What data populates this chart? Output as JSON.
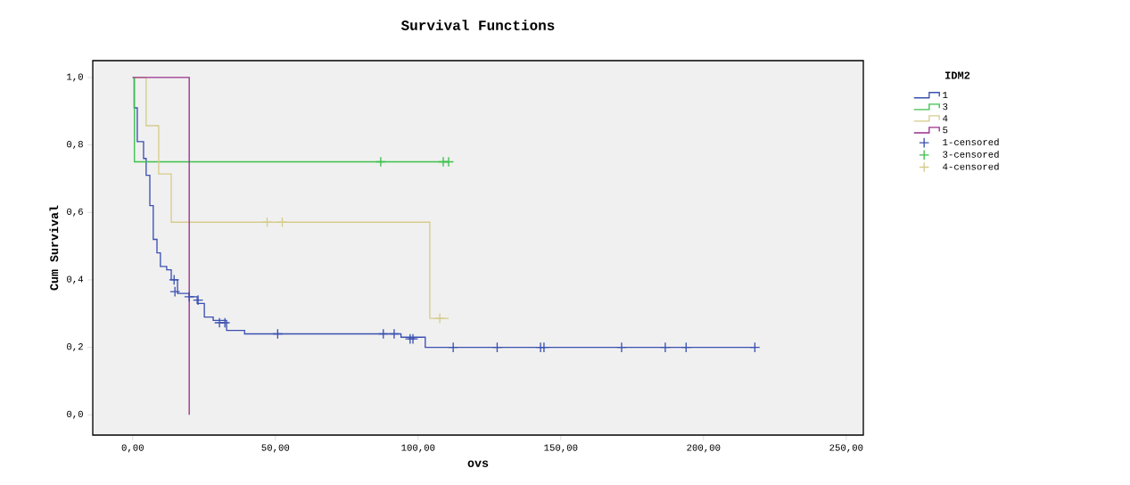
{
  "chart_data": {
    "type": "step",
    "title": "Survival Functions",
    "xlabel": "ovs",
    "ylabel": "Cum Survival",
    "legend_title": "IDM2",
    "legend": "right",
    "grid": false,
    "xlim": [
      -14,
      256
    ],
    "ylim": [
      -0.06,
      1.05
    ],
    "xticks": [
      {
        "value": 0,
        "label": "0,00"
      },
      {
        "value": 50,
        "label": "50,00"
      },
      {
        "value": 100,
        "label": "100,00"
      },
      {
        "value": 150,
        "label": "150,00"
      },
      {
        "value": 200,
        "label": "200,00"
      },
      {
        "value": 250,
        "label": "250,00"
      }
    ],
    "yticks": [
      {
        "value": 0,
        "label": "0,0"
      },
      {
        "value": 0.2,
        "label": "0,2"
      },
      {
        "value": 0.4,
        "label": "0,4"
      },
      {
        "value": 0.6,
        "label": "0,6"
      },
      {
        "value": 0.8,
        "label": "0,8"
      },
      {
        "value": 1.0,
        "label": "1,0"
      }
    ],
    "series": [
      {
        "name": "1",
        "marker": "none",
        "color": "#3b50b0",
        "x": [
          0,
          0.5,
          1.6,
          3.8,
          4.7,
          6.0,
          7.2,
          8.5,
          9.7,
          11.9,
          13.5,
          15.7,
          19.8,
          22.6,
          25.1,
          28.2,
          32.9,
          39.2,
          94,
          102.5,
          218
        ],
        "values": [
          1.0,
          0.91,
          0.81,
          0.76,
          0.71,
          0.62,
          0.52,
          0.48,
          0.44,
          0.43,
          0.4,
          0.36,
          0.35,
          0.33,
          0.29,
          0.28,
          0.25,
          0.24,
          0.23,
          0.2,
          0.2
        ]
      },
      {
        "name": "3",
        "marker": "none",
        "color": "#3cc04a",
        "x": [
          0,
          0.6,
          110.7
        ],
        "values": [
          1.0,
          0.75,
          0.75
        ]
      },
      {
        "name": "4",
        "marker": "none",
        "color": "#d6cc8c",
        "x": [
          0,
          4.7,
          9.1,
          13.5,
          104.1,
          110.7
        ],
        "values": [
          1.0,
          0.857,
          0.714,
          0.571,
          0.286,
          0.286
        ]
      },
      {
        "name": "5",
        "marker": "none",
        "color": "#9a2f8c",
        "x": [
          0,
          19.8,
          19.8
        ],
        "values": [
          1.0,
          0.0,
          0.0
        ]
      },
      {
        "name": "1-censored",
        "type": "scatter",
        "marker": "cross",
        "color": "#3b50b0",
        "x": [
          14.5,
          14.8,
          19.8,
          22.9,
          30.4,
          32.3,
          50.8,
          87.8,
          91.6,
          97.2,
          98.2,
          112.3,
          127.7,
          142.9,
          144.1,
          171.3,
          186.6,
          193.9,
          218
        ],
        "values": [
          0.4,
          0.365,
          0.35,
          0.34,
          0.273,
          0.273,
          0.24,
          0.24,
          0.24,
          0.225,
          0.225,
          0.2,
          0.2,
          0.2,
          0.2,
          0.2,
          0.2,
          0.2,
          0.2
        ]
      },
      {
        "name": "3-censored",
        "type": "scatter",
        "marker": "cross",
        "color": "#3cc04a",
        "x": [
          86.9,
          108.8,
          110.7
        ],
        "values": [
          0.75,
          0.75,
          0.75
        ]
      },
      {
        "name": "4-censored",
        "type": "scatter",
        "marker": "cross",
        "color": "#d6cc8c",
        "x": [
          47.1,
          52.4,
          107.6
        ],
        "values": [
          0.571,
          0.571,
          0.286
        ]
      }
    ]
  }
}
